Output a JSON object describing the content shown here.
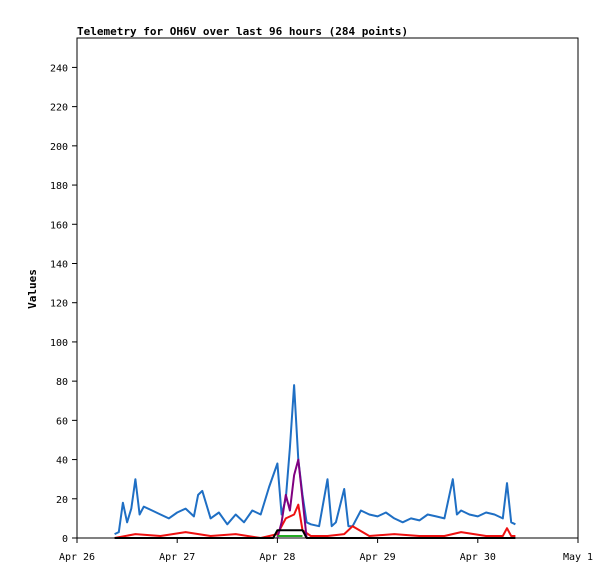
{
  "chart_data": {
    "type": "line",
    "title": "Telemetry for OH6V over last 96 hours (284 points)",
    "xlabel": "",
    "ylabel": "Values",
    "ylim": [
      0,
      255
    ],
    "xlim": [
      "2024-04-26",
      "2024-05-01"
    ],
    "x_tick_labels": [
      "Apr 26",
      "Apr 27",
      "Apr 28",
      "Apr 29",
      "Apr 30",
      "May 1"
    ],
    "y_ticks": [
      0,
      20,
      40,
      60,
      80,
      100,
      120,
      140,
      160,
      180,
      200,
      220,
      240
    ],
    "grid": false,
    "legend": "none",
    "series": [
      {
        "color": "#1f6fc4",
        "x": [
          "2024-04-26T09:00",
          "2024-04-26T10:00",
          "2024-04-26T11:00",
          "2024-04-26T12:00",
          "2024-04-26T13:00",
          "2024-04-26T14:00",
          "2024-04-26T15:00",
          "2024-04-26T16:00",
          "2024-04-26T18:00",
          "2024-04-26T20:00",
          "2024-04-26T22:00",
          "2024-04-27T00:00",
          "2024-04-27T02:00",
          "2024-04-27T04:00",
          "2024-04-27T05:00",
          "2024-04-27T06:00",
          "2024-04-27T08:00",
          "2024-04-27T10:00",
          "2024-04-27T12:00",
          "2024-04-27T14:00",
          "2024-04-27T16:00",
          "2024-04-27T18:00",
          "2024-04-27T20:00",
          "2024-04-27T22:00",
          "2024-04-28T00:00",
          "2024-04-28T01:00",
          "2024-04-28T02:00",
          "2024-04-28T03:00",
          "2024-04-28T04:00",
          "2024-04-28T05:00",
          "2024-04-28T06:00",
          "2024-04-28T07:00",
          "2024-04-28T08:00",
          "2024-04-28T10:00",
          "2024-04-28T12:00",
          "2024-04-28T13:00",
          "2024-04-28T14:00",
          "2024-04-28T16:00",
          "2024-04-28T17:00",
          "2024-04-28T18:00",
          "2024-04-28T20:00",
          "2024-04-28T22:00",
          "2024-04-29T00:00",
          "2024-04-29T02:00",
          "2024-04-29T04:00",
          "2024-04-29T06:00",
          "2024-04-29T08:00",
          "2024-04-29T10:00",
          "2024-04-29T12:00",
          "2024-04-29T14:00",
          "2024-04-29T16:00",
          "2024-04-29T18:00",
          "2024-04-29T19:00",
          "2024-04-29T20:00",
          "2024-04-29T22:00",
          "2024-04-30T00:00",
          "2024-04-30T02:00",
          "2024-04-30T04:00",
          "2024-04-30T06:00",
          "2024-04-30T07:00",
          "2024-04-30T08:00",
          "2024-04-30T09:00"
        ],
        "y": [
          2,
          3,
          18,
          8,
          15,
          30,
          12,
          16,
          14,
          12,
          10,
          13,
          15,
          11,
          22,
          24,
          10,
          13,
          7,
          12,
          8,
          14,
          12,
          26,
          38,
          12,
          20,
          46,
          78,
          40,
          22,
          8,
          7,
          6,
          30,
          6,
          8,
          25,
          6,
          6,
          14,
          12,
          11,
          13,
          10,
          8,
          10,
          9,
          12,
          11,
          10,
          30,
          12,
          14,
          12,
          11,
          13,
          12,
          10,
          28,
          8,
          7
        ]
      },
      {
        "color": "#ee1111",
        "x": [
          "2024-04-26T09:00",
          "2024-04-26T14:00",
          "2024-04-26T20:00",
          "2024-04-27T02:00",
          "2024-04-27T08:00",
          "2024-04-27T14:00",
          "2024-04-27T20:00",
          "2024-04-28T00:00",
          "2024-04-28T02:00",
          "2024-04-28T04:00",
          "2024-04-28T05:00",
          "2024-04-28T06:00",
          "2024-04-28T08:00",
          "2024-04-28T12:00",
          "2024-04-28T16:00",
          "2024-04-28T18:00",
          "2024-04-28T22:00",
          "2024-04-29T04:00",
          "2024-04-29T10:00",
          "2024-04-29T16:00",
          "2024-04-29T20:00",
          "2024-04-30T02:00",
          "2024-04-30T06:00",
          "2024-04-30T07:00",
          "2024-04-30T08:00",
          "2024-04-30T09:00"
        ],
        "y": [
          0,
          2,
          1,
          3,
          1,
          2,
          0,
          2,
          10,
          12,
          17,
          4,
          1,
          1,
          2,
          6,
          1,
          2,
          1,
          1,
          3,
          1,
          1,
          5,
          1,
          1
        ]
      },
      {
        "color": "#800080",
        "x": [
          "2024-04-28T00:00",
          "2024-04-28T01:00",
          "2024-04-28T02:00",
          "2024-04-28T03:00",
          "2024-04-28T04:00",
          "2024-04-28T05:00",
          "2024-04-28T06:00",
          "2024-04-28T07:00"
        ],
        "y": [
          0,
          8,
          22,
          14,
          32,
          40,
          20,
          0
        ]
      },
      {
        "color": "#000000",
        "x": [
          "2024-04-26T09:00",
          "2024-04-27T23:00",
          "2024-04-28T00:00",
          "2024-04-28T06:00",
          "2024-04-28T07:00",
          "2024-04-30T09:00"
        ],
        "y": [
          0,
          0,
          4,
          4,
          0,
          0
        ]
      },
      {
        "color": "#22aa22",
        "x": [
          "2024-04-28T00:00",
          "2024-04-28T06:00"
        ],
        "y": [
          1,
          1
        ]
      }
    ]
  }
}
